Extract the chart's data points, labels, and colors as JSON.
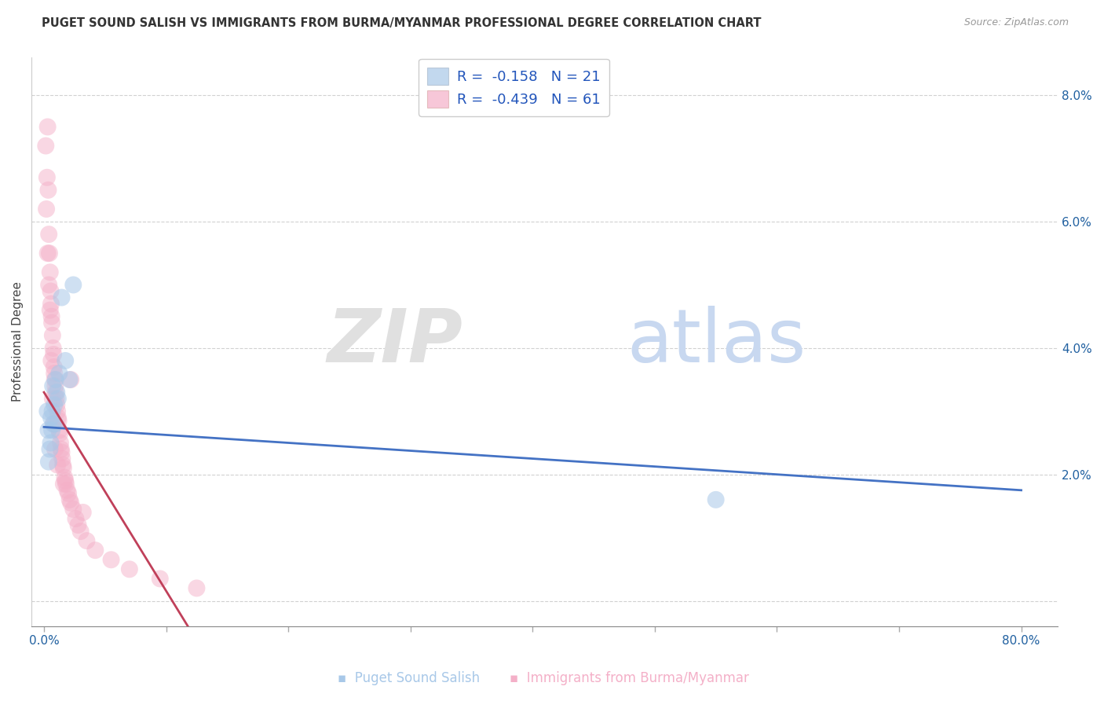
{
  "title": "PUGET SOUND SALISH VS IMMIGRANTS FROM BURMA/MYANMAR PROFESSIONAL DEGREE CORRELATION CHART",
  "source": "Source: ZipAtlas.com",
  "ylabel": "Professional Degree",
  "xlim": [
    0,
    80
  ],
  "ylim": [
    0,
    8
  ],
  "blue_color": "#a8c8e8",
  "pink_color": "#f4b0c8",
  "blue_line_color": "#4472c4",
  "pink_line_color": "#c0405a",
  "series1_R": -0.158,
  "series1_N": 21,
  "series2_R": -0.439,
  "series2_N": 61,
  "legend_text_color": "#2255bb",
  "axis_color": "#2060a0",
  "title_color": "#333333",
  "source_color": "#999999",
  "grid_color": "#cccccc",
  "blue_line_y0": 2.75,
  "blue_line_y1": 1.75,
  "pink_line_y0": 3.3,
  "pink_line_x1": 10.5,
  "xtick_positions": [
    0,
    10,
    20,
    30,
    40,
    50,
    60,
    70,
    80
  ],
  "ytick_positions": [
    0,
    2,
    4,
    6,
    8
  ],
  "watermark_zip": "ZIP",
  "watermark_atlas": "atlas",
  "blue_x": [
    0.35,
    0.55,
    0.75,
    0.95,
    1.15,
    0.28,
    0.65,
    0.48,
    0.85,
    1.45,
    0.58,
    1.05,
    0.72,
    1.25,
    0.38,
    0.68,
    0.92,
    1.75,
    2.1,
    55.0,
    2.4
  ],
  "blue_y": [
    2.7,
    2.5,
    2.8,
    3.5,
    3.2,
    3.0,
    2.7,
    2.4,
    3.1,
    4.8,
    2.9,
    3.3,
    3.4,
    3.6,
    2.2,
    3.0,
    2.8,
    3.8,
    3.5,
    1.6,
    5.0
  ],
  "pink_x": [
    0.15,
    0.25,
    0.3,
    0.35,
    0.4,
    0.45,
    0.5,
    0.55,
    0.58,
    0.62,
    0.65,
    0.7,
    0.75,
    0.78,
    0.82,
    0.85,
    0.88,
    0.92,
    0.95,
    1.0,
    1.05,
    1.1,
    1.15,
    1.2,
    1.25,
    1.3,
    1.35,
    1.4,
    1.45,
    1.5,
    1.55,
    1.6,
    1.7,
    1.75,
    1.8,
    1.9,
    2.0,
    2.1,
    2.2,
    2.4,
    2.6,
    2.8,
    3.0,
    3.5,
    4.2,
    5.5,
    7.0,
    9.5,
    12.5,
    0.2,
    0.3,
    0.4,
    0.5,
    0.6,
    0.7,
    0.8,
    0.9,
    1.1,
    1.6,
    2.2,
    3.2
  ],
  "pink_y": [
    7.2,
    6.7,
    7.5,
    6.5,
    5.8,
    5.5,
    5.2,
    4.9,
    4.7,
    4.5,
    4.4,
    4.2,
    4.0,
    3.9,
    3.7,
    3.6,
    3.5,
    3.4,
    3.3,
    3.2,
    3.1,
    3.0,
    2.9,
    2.85,
    2.7,
    2.65,
    2.5,
    2.4,
    2.35,
    2.25,
    2.15,
    2.1,
    1.95,
    1.9,
    1.85,
    1.75,
    1.7,
    1.6,
    1.55,
    1.45,
    1.3,
    1.2,
    1.1,
    0.95,
    0.8,
    0.65,
    0.5,
    0.35,
    0.2,
    6.2,
    5.5,
    5.0,
    4.6,
    3.8,
    3.2,
    2.8,
    2.4,
    2.15,
    1.85,
    3.5,
    1.4
  ]
}
